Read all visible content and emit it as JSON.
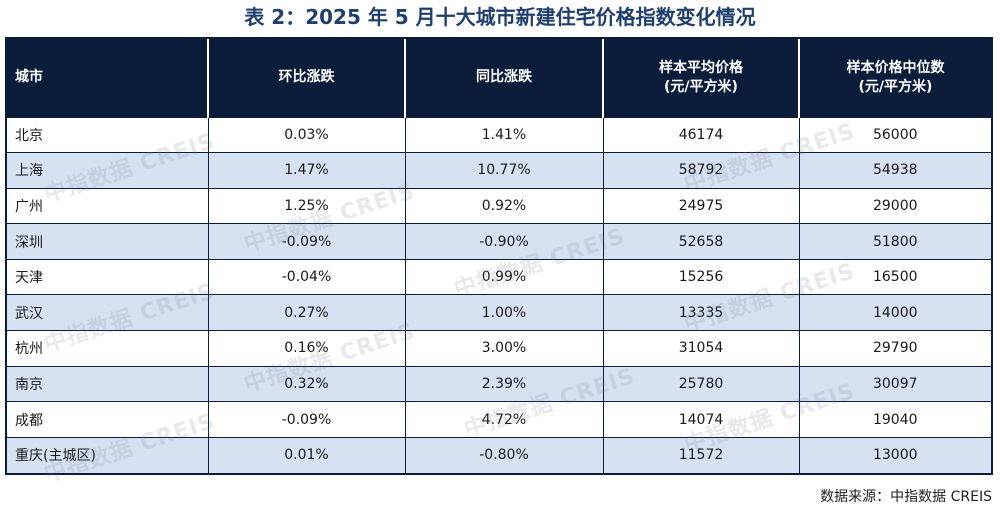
{
  "title": "表 2：2025 年 5 月十大城市新建住宅价格指数变化情况",
  "table": {
    "headers": {
      "city": "城市",
      "mom": "环比涨跌",
      "yoy": "同比涨跌",
      "avg_line1": "样本平均价格",
      "avg_line2": "(元/平方米)",
      "median_line1": "样本价格中位数",
      "median_line2": "(元/平方米)"
    },
    "rows": [
      {
        "city": "北京",
        "mom": "0.03%",
        "yoy": "1.41%",
        "avg": "46174",
        "median": "56000"
      },
      {
        "city": "上海",
        "mom": "1.47%",
        "yoy": "10.77%",
        "avg": "58792",
        "median": "54938"
      },
      {
        "city": "广州",
        "mom": "1.25%",
        "yoy": "0.92%",
        "avg": "24975",
        "median": "29000"
      },
      {
        "city": "深圳",
        "mom": "-0.09%",
        "yoy": "-0.90%",
        "avg": "52658",
        "median": "51800"
      },
      {
        "city": "天津",
        "mom": "-0.04%",
        "yoy": "0.99%",
        "avg": "15256",
        "median": "16500"
      },
      {
        "city": "武汉",
        "mom": "0.27%",
        "yoy": "1.00%",
        "avg": "13335",
        "median": "14000"
      },
      {
        "city": "杭州",
        "mom": "0.16%",
        "yoy": "3.00%",
        "avg": "31054",
        "median": "29790"
      },
      {
        "city": "南京",
        "mom": "0.32%",
        "yoy": "2.39%",
        "avg": "25780",
        "median": "30097"
      },
      {
        "city": "成都",
        "mom": "-0.09%",
        "yoy": "4.72%",
        "avg": "14074",
        "median": "19040"
      },
      {
        "city": "重庆(主城区)",
        "mom": "0.01%",
        "yoy": "-0.80%",
        "avg": "11572",
        "median": "13000"
      }
    ]
  },
  "watermark": "中指数据 CREIS",
  "source": "数据来源：中指数据 CREIS"
}
